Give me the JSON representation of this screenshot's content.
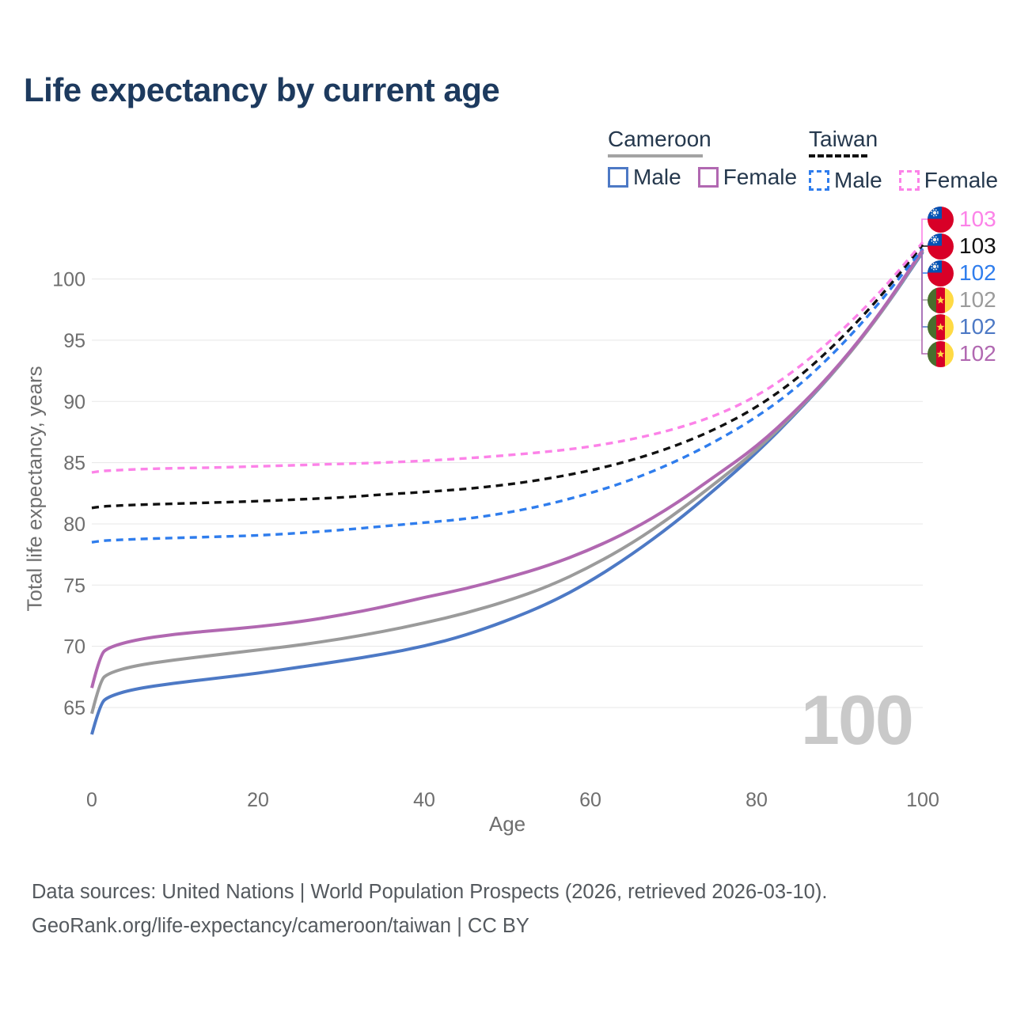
{
  "title": "Life expectancy by current age",
  "legend": {
    "groups": [
      {
        "name": "Cameroon",
        "line_style": "solid",
        "items": [
          {
            "label": "Male",
            "color": "#4d79c5"
          },
          {
            "label": "Female",
            "color": "#b168b1"
          }
        ]
      },
      {
        "name": "Taiwan",
        "line_style": "dashed",
        "items": [
          {
            "label": "Male",
            "color": "#2f7ded"
          },
          {
            "label": "Female",
            "color": "#fc82e8"
          }
        ]
      }
    ]
  },
  "chart_data": {
    "type": "line",
    "xlabel": "Age",
    "ylabel": "Total life expectancy, years",
    "xlim": [
      0,
      100
    ],
    "ylim": [
      62,
      104
    ],
    "x_ticks": [
      0,
      20,
      40,
      60,
      80,
      100
    ],
    "y_ticks": [
      65,
      70,
      75,
      80,
      85,
      90,
      95,
      100
    ],
    "grid": "horizontal",
    "legend_position": "top-right",
    "x": [
      0,
      1,
      2,
      5,
      10,
      15,
      20,
      25,
      30,
      35,
      40,
      45,
      50,
      55,
      60,
      65,
      70,
      75,
      80,
      85,
      90,
      95,
      100
    ],
    "series": [
      {
        "name": "Taiwan Female",
        "country": "Taiwan",
        "sex": "Female",
        "color": "#fc82e8",
        "dashed": true,
        "end_label": "103",
        "values": [
          84.2,
          84.3,
          84.35,
          84.45,
          84.55,
          84.6,
          84.7,
          84.8,
          84.9,
          85.0,
          85.15,
          85.35,
          85.6,
          85.9,
          86.3,
          86.9,
          87.7,
          88.8,
          90.4,
          92.7,
          95.6,
          99.0,
          103.0
        ]
      },
      {
        "name": "Taiwan Total",
        "country": "Taiwan",
        "sex": "Both",
        "color": "#111111",
        "dashed": true,
        "end_label": "103",
        "values": [
          81.3,
          81.4,
          81.45,
          81.55,
          81.65,
          81.75,
          81.85,
          82.0,
          82.15,
          82.4,
          82.6,
          82.85,
          83.2,
          83.7,
          84.35,
          85.2,
          86.3,
          87.7,
          89.5,
          91.9,
          95.0,
          98.6,
          102.8
        ]
      },
      {
        "name": "Taiwan Male",
        "country": "Taiwan",
        "sex": "Male",
        "color": "#2f7ded",
        "dashed": true,
        "end_label": "102",
        "values": [
          78.5,
          78.6,
          78.65,
          78.75,
          78.85,
          78.95,
          79.05,
          79.25,
          79.5,
          79.8,
          80.1,
          80.4,
          80.9,
          81.6,
          82.5,
          83.6,
          85.0,
          86.7,
          88.7,
          91.2,
          94.4,
          98.2,
          102.5
        ]
      },
      {
        "name": "Cameroon Total",
        "country": "Cameroon",
        "sex": "Both",
        "color": "#9b9b9b",
        "dashed": false,
        "end_label": "102",
        "values": [
          64.5,
          67.2,
          67.8,
          68.4,
          68.9,
          69.3,
          69.7,
          70.1,
          70.6,
          71.2,
          71.9,
          72.7,
          73.7,
          74.9,
          76.5,
          78.4,
          80.7,
          83.3,
          86.0,
          89.3,
          92.9,
          97.2,
          102.3
        ]
      },
      {
        "name": "Cameroon Male",
        "country": "Cameroon",
        "sex": "Male",
        "color": "#4d79c5",
        "dashed": false,
        "end_label": "102",
        "values": [
          62.8,
          65.3,
          65.9,
          66.5,
          67.0,
          67.4,
          67.8,
          68.3,
          68.8,
          69.35,
          70.0,
          70.9,
          72.1,
          73.5,
          75.3,
          77.5,
          80.0,
          82.8,
          85.8,
          89.2,
          92.9,
          97.2,
          102.2
        ]
      },
      {
        "name": "Cameroon Female",
        "country": "Cameroon",
        "sex": "Female",
        "color": "#b168b1",
        "dashed": false,
        "end_label": "102",
        "values": [
          66.6,
          69.3,
          69.9,
          70.5,
          71.0,
          71.3,
          71.6,
          72.0,
          72.55,
          73.2,
          74.0,
          74.7,
          75.6,
          76.6,
          77.9,
          79.5,
          81.5,
          83.9,
          86.3,
          89.4,
          93.0,
          97.3,
          102.4
        ]
      }
    ]
  },
  "flags": {
    "taiwan": {
      "field": "#d80027",
      "canton": "#0052b4",
      "sun": "#f0f0f0"
    },
    "cameroon": {
      "green": "#496e2d",
      "red": "#d80027",
      "yellow": "#ffda44",
      "star": "#ffda44"
    }
  },
  "watermark": "100",
  "footer": {
    "line1": "Data sources: United Nations | World Population Prospects (2026, retrieved 2026-03-10).",
    "line2": "GeoRank.org/life-expectancy/cameroon/taiwan | CC BY"
  }
}
